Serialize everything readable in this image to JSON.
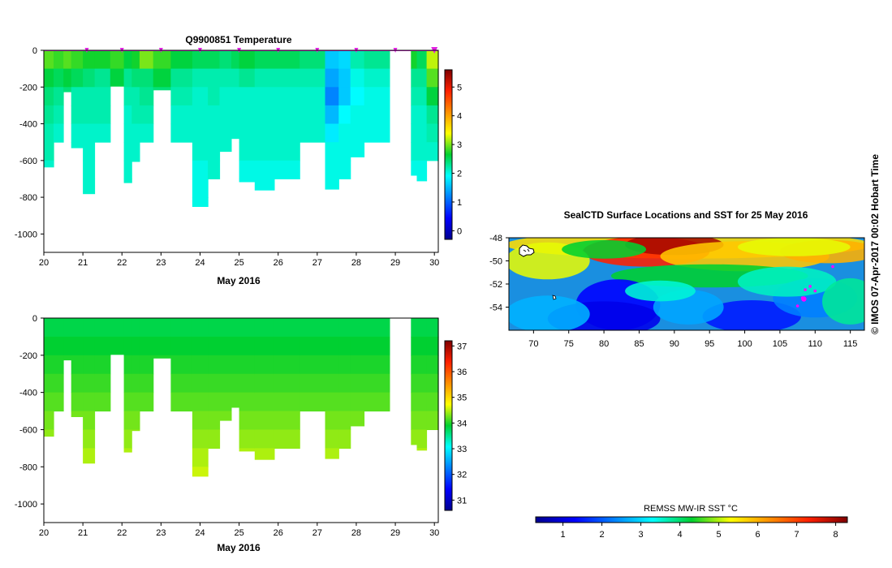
{
  "chart_data": [
    {
      "type": "heatmap",
      "title": "Q9900851  Temperature",
      "xlabel": "May 2016",
      "x_ticks": [
        "20",
        "21",
        "22",
        "23",
        "24",
        "25",
        "26",
        "27",
        "28",
        "29",
        "30"
      ],
      "y_ticks": [
        "0",
        "-200",
        "-400",
        "-600",
        "-800",
        "-1000"
      ],
      "ylim": [
        -1100,
        0
      ],
      "xlim": [
        20,
        30.1
      ],
      "colorbar_ticks": [
        "0",
        "1",
        "2",
        "3",
        "4",
        "5"
      ],
      "colorbar_range": [
        -0.3,
        5.6
      ],
      "surface_markers": [
        21.1,
        22.0,
        23.0,
        24.0,
        25.0,
        26.0,
        27.0,
        28.0,
        29.0,
        30.0
      ],
      "profiles": [
        {
          "start": 20.0,
          "end": 20.25,
          "depth": 635,
          "values": [
            2.9,
            2.6,
            2.4,
            2.3,
            2.2,
            2.2,
            2.1,
            2.1
          ]
        },
        {
          "start": 20.25,
          "end": 20.5,
          "depth": 500,
          "values": [
            2.8,
            2.5,
            2.3,
            2.2,
            2.1,
            2.1,
            2.1
          ]
        },
        {
          "start": 20.5,
          "end": 20.7,
          "depth": 225,
          "values": [
            2.9,
            2.6,
            2.4
          ]
        },
        {
          "start": 20.7,
          "end": 21.0,
          "depth": 530,
          "values": [
            2.8,
            2.5,
            2.2,
            2.2,
            2.1,
            2.1,
            2.1
          ]
        },
        {
          "start": 21.0,
          "end": 21.3,
          "depth": 780,
          "values": [
            2.7,
            2.4,
            2.2,
            2.2,
            2.1,
            2.1,
            2.1,
            2.1,
            2.1
          ]
        },
        {
          "start": 21.3,
          "end": 21.7,
          "depth": 500,
          "values": [
            2.7,
            2.3,
            2.2,
            2.2,
            2.1,
            2.1,
            2.1
          ]
        },
        {
          "start": 21.7,
          "end": 22.05,
          "depth": 195,
          "values": [
            2.8,
            2.6
          ]
        },
        {
          "start": 22.05,
          "end": 22.25,
          "depth": 720,
          "values": [
            2.6,
            2.3,
            2.2,
            2.1,
            2.1,
            2.1,
            2.1,
            2.1
          ]
        },
        {
          "start": 22.25,
          "end": 22.45,
          "depth": 605,
          "values": [
            2.7,
            2.4,
            2.2,
            2.2,
            2.1,
            2.1,
            2.1
          ]
        },
        {
          "start": 22.45,
          "end": 22.8,
          "depth": 500,
          "values": [
            3.0,
            2.4,
            2.3,
            2.2,
            2.1,
            2.1,
            2.1
          ]
        },
        {
          "start": 22.8,
          "end": 23.25,
          "depth": 215,
          "values": [
            2.8,
            2.6,
            2.4
          ]
        },
        {
          "start": 23.25,
          "end": 23.8,
          "depth": 500,
          "values": [
            2.6,
            2.3,
            2.2,
            2.1,
            2.1,
            2.1,
            2.1
          ]
        },
        {
          "start": 23.8,
          "end": 24.2,
          "depth": 850,
          "values": [
            2.5,
            2.2,
            2.1,
            2.1,
            2.1,
            2.1,
            2.0,
            2.0,
            2.0
          ]
        },
        {
          "start": 24.2,
          "end": 24.5,
          "depth": 700,
          "values": [
            2.5,
            2.2,
            2.2,
            2.1,
            2.1,
            2.1,
            2.1,
            2.0
          ]
        },
        {
          "start": 24.5,
          "end": 24.8,
          "depth": 550,
          "values": [
            2.4,
            2.2,
            2.1,
            2.1,
            2.1,
            2.1,
            2.0
          ]
        },
        {
          "start": 24.8,
          "end": 25.0,
          "depth": 480,
          "values": [
            2.5,
            2.2,
            2.1,
            2.1,
            2.1,
            2.1
          ]
        },
        {
          "start": 25.0,
          "end": 25.4,
          "depth": 715,
          "values": [
            2.6,
            2.3,
            2.1,
            2.1,
            2.1,
            2.1,
            2.0,
            2.0
          ]
        },
        {
          "start": 25.4,
          "end": 25.9,
          "depth": 760,
          "values": [
            2.5,
            2.2,
            2.1,
            2.1,
            2.1,
            2.1,
            2.0,
            2.0
          ]
        },
        {
          "start": 25.9,
          "end": 26.55,
          "depth": 700,
          "values": [
            2.5,
            2.2,
            2.1,
            2.1,
            2.1,
            2.1,
            2.0,
            2.0
          ]
        },
        {
          "start": 26.55,
          "end": 27.2,
          "depth": 500,
          "values": [
            2.4,
            2.2,
            2.1,
            2.1,
            2.1,
            2.1,
            2.0
          ]
        },
        {
          "start": 27.2,
          "end": 27.55,
          "depth": 755,
          "values": [
            1.6,
            1.4,
            1.2,
            1.5,
            1.8,
            2.0,
            2.0,
            2.0
          ]
        },
        {
          "start": 27.55,
          "end": 27.85,
          "depth": 700,
          "values": [
            1.7,
            1.6,
            1.6,
            1.9,
            2.0,
            2.0,
            2.0,
            2.0
          ]
        },
        {
          "start": 27.85,
          "end": 28.2,
          "depth": 580,
          "values": [
            2.2,
            2.0,
            1.9,
            2.0,
            2.0,
            2.0,
            2.0
          ]
        },
        {
          "start": 28.2,
          "end": 28.85,
          "depth": 500,
          "values": [
            2.3,
            2.1,
            2.0,
            2.0,
            2.0,
            2.0,
            2.0
          ]
        },
        {
          "start": 29.4,
          "end": 29.55,
          "depth": 680,
          "values": [
            2.7,
            2.3,
            2.2,
            2.1,
            2.1,
            2.1,
            2.0,
            2.0
          ]
        },
        {
          "start": 29.55,
          "end": 29.8,
          "depth": 710,
          "values": [
            2.5,
            2.3,
            2.2,
            2.1,
            2.1,
            2.1,
            2.0,
            2.0
          ]
        },
        {
          "start": 29.8,
          "end": 30.1,
          "depth": 600,
          "values": [
            3.2,
            2.9,
            2.6,
            2.3,
            2.2,
            2.1,
            2.1
          ]
        }
      ]
    },
    {
      "type": "heatmap",
      "xlabel": "May 2016",
      "x_ticks": [
        "20",
        "21",
        "22",
        "23",
        "24",
        "25",
        "26",
        "27",
        "28",
        "29",
        "30"
      ],
      "y_ticks": [
        "0",
        "-200",
        "-400",
        "-600",
        "-800",
        "-1000"
      ],
      "ylim": [
        -1100,
        0
      ],
      "xlim": [
        20,
        30.1
      ],
      "colorbar_ticks": [
        "31",
        "32",
        "33",
        "34",
        "35",
        "36",
        "37"
      ],
      "colorbar_range": [
        30.6,
        37.2
      ],
      "profiles_from_temperature_chart": true,
      "value_range": [
        33.8,
        34.6
      ]
    },
    {
      "type": "heatmap",
      "title": "SealCTD Surface Locations and SST for 25 May 2016",
      "x_ticks": [
        "70",
        "75",
        "80",
        "85",
        "90",
        "95",
        "100",
        "105",
        "110",
        "115"
      ],
      "y_ticks": [
        "-48",
        "-50",
        "-52",
        "-54"
      ],
      "xlim": [
        66.5,
        117
      ],
      "ylim": [
        -56,
        -48
      ],
      "colorbar_label": "REMSS MW-IR SST °C",
      "colorbar_ticks": [
        "1",
        "2",
        "3",
        "4",
        "5",
        "6",
        "7",
        "8"
      ],
      "colorbar_range": [
        0.3,
        8.3
      ]
    }
  ],
  "footer": {
    "credit": "© IMOS 07-Apr-2017 00:02 Hobart Time"
  },
  "colors": {
    "surface_marker": "#e020e0",
    "track": "#ff00ff"
  }
}
